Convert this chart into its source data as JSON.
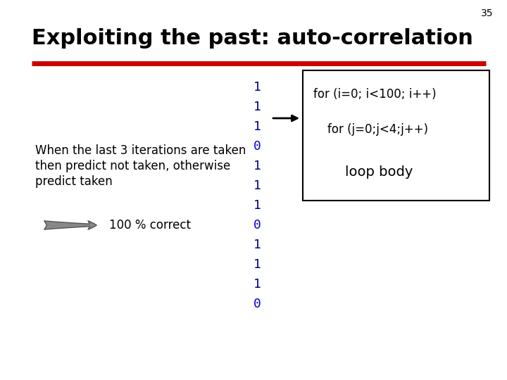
{
  "slide_number": "35",
  "title": "Exploiting the past: auto-correlation",
  "title_fontsize": 22,
  "title_bold": true,
  "title_color": "#000000",
  "red_line_color": "#cc0000",
  "red_line_lw": 5,
  "body_text_lines": [
    "When the last 3 iterations are taken",
    "then predict not taken, otherwise",
    "predict taken"
  ],
  "body_text_fontsize": 12,
  "arrow_text": "100 % correct",
  "arrow_text_fontsize": 12,
  "sequence": [
    "1",
    "1",
    "1",
    "0",
    "1",
    "1",
    "1",
    "0",
    "1",
    "1",
    "1",
    "0"
  ],
  "seq_colors": [
    "#000080",
    "#000080",
    "#000080",
    "#0000dd",
    "#000080",
    "#000080",
    "#000080",
    "#0000dd",
    "#000080",
    "#000080",
    "#000080",
    "#0000dd"
  ],
  "seq_fontsize": 13,
  "for1_text": "for (i=0; i<100; i++)",
  "for2_text": "for (j=0;j<4;j++)",
  "loop_text": "loop body",
  "code_fontsize": 12,
  "code_color": "#000000",
  "bg_color": "#ffffff",
  "slide_num_fontsize": 10
}
